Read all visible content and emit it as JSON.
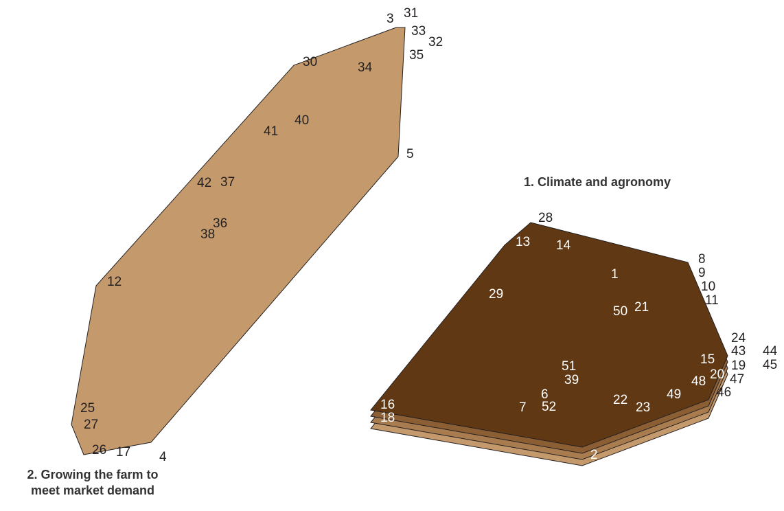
{
  "titles": {
    "cluster_1": "1. Climate and agronomy",
    "cluster_2_line1": "2. Growing the farm to",
    "cluster_2_line2": "meet market demand"
  },
  "colors": {
    "cluster_1_fill": "#603813",
    "cluster_2_fill": "#c49a6c",
    "layer_shades": [
      "#c49a6c",
      "#a97c50",
      "#8b5e34",
      "#754c24"
    ],
    "label_dark": "#231f20",
    "label_light": "#ffffff"
  },
  "labels": [
    "1",
    "2",
    "3",
    "4",
    "5",
    "6",
    "7",
    "8",
    "9",
    "10",
    "11",
    "12",
    "13",
    "14",
    "15",
    "16",
    "17",
    "18",
    "19",
    "20",
    "21",
    "22",
    "23",
    "24",
    "25",
    "26",
    "27",
    "28",
    "29",
    "30",
    "31",
    "32",
    "33",
    "34",
    "35",
    "36",
    "37",
    "38",
    "39",
    "40",
    "41",
    "42",
    "43",
    "44",
    "45",
    "46",
    "47",
    "48",
    "49",
    "50",
    "51",
    "52"
  ]
}
